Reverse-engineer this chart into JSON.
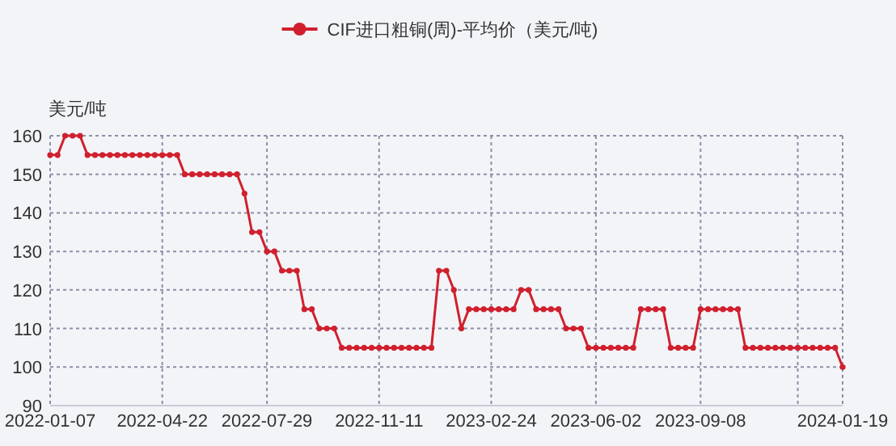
{
  "chart_data": {
    "type": "line",
    "ylabel": "美元/吨",
    "legend": "top",
    "grid": true,
    "marker": "circle",
    "line_style": "solid",
    "x": [
      "2022-01-07",
      "2022-01-14",
      "2022-01-21",
      "2022-01-28",
      "2022-02-04",
      "2022-02-11",
      "2022-02-18",
      "2022-02-25",
      "2022-03-04",
      "2022-03-11",
      "2022-03-18",
      "2022-03-25",
      "2022-04-01",
      "2022-04-08",
      "2022-04-15",
      "2022-04-22",
      "2022-04-29",
      "2022-05-06",
      "2022-05-13",
      "2022-05-20",
      "2022-05-27",
      "2022-06-03",
      "2022-06-10",
      "2022-06-17",
      "2022-06-24",
      "2022-07-01",
      "2022-07-08",
      "2022-07-15",
      "2022-07-22",
      "2022-07-29",
      "2022-08-05",
      "2022-08-12",
      "2022-08-19",
      "2022-08-26",
      "2022-09-02",
      "2022-09-09",
      "2022-09-16",
      "2022-09-23",
      "2022-09-30",
      "2022-10-07",
      "2022-10-14",
      "2022-10-21",
      "2022-10-28",
      "2022-11-04",
      "2022-11-11",
      "2022-11-18",
      "2022-11-25",
      "2022-12-02",
      "2022-12-09",
      "2022-12-16",
      "2022-12-23",
      "2022-12-30",
      "2023-01-06",
      "2023-01-13",
      "2023-01-20",
      "2023-01-27",
      "2023-02-03",
      "2023-02-10",
      "2023-02-17",
      "2023-02-24",
      "2023-03-03",
      "2023-03-10",
      "2023-03-17",
      "2023-03-24",
      "2023-03-31",
      "2023-04-07",
      "2023-04-14",
      "2023-04-21",
      "2023-04-28",
      "2023-05-05",
      "2023-05-12",
      "2023-05-19",
      "2023-05-26",
      "2023-06-02",
      "2023-06-09",
      "2023-06-16",
      "2023-06-23",
      "2023-06-30",
      "2023-07-07",
      "2023-07-14",
      "2023-07-21",
      "2023-07-28",
      "2023-08-04",
      "2023-08-11",
      "2023-08-18",
      "2023-08-25",
      "2023-09-01",
      "2023-09-08",
      "2023-09-15",
      "2023-09-22",
      "2023-09-29",
      "2023-10-06",
      "2023-10-13",
      "2023-10-20",
      "2023-10-27",
      "2023-11-03",
      "2023-11-10",
      "2023-11-17",
      "2023-11-24",
      "2023-12-01",
      "2023-12-08",
      "2023-12-15",
      "2023-12-22",
      "2023-12-29",
      "2024-01-05",
      "2024-01-12",
      "2024-01-19"
    ],
    "series": [
      {
        "name": "CIF进口粗铜(周)-平均价（美元/吨)",
        "color": "#d0202e",
        "values": [
          155,
          155,
          160,
          160,
          160,
          155,
          155,
          155,
          155,
          155,
          155,
          155,
          155,
          155,
          155,
          155,
          155,
          155,
          150,
          150,
          150,
          150,
          150,
          150,
          150,
          150,
          145,
          135,
          135,
          130,
          130,
          125,
          125,
          125,
          115,
          115,
          110,
          110,
          110,
          105,
          105,
          105,
          105,
          105,
          105,
          105,
          105,
          105,
          105,
          105,
          105,
          105,
          125,
          125,
          120,
          110,
          115,
          115,
          115,
          115,
          115,
          115,
          115,
          120,
          120,
          115,
          115,
          115,
          115,
          110,
          110,
          110,
          105,
          105,
          105,
          105,
          105,
          105,
          105,
          115,
          115,
          115,
          115,
          105,
          105,
          105,
          105,
          115,
          115,
          115,
          115,
          115,
          115,
          105,
          105,
          105,
          105,
          105,
          105,
          105,
          105,
          105,
          105,
          105,
          105,
          105,
          100
        ]
      }
    ],
    "xlim": [
      "2022-01-07",
      "2024-01-19"
    ],
    "xticks": [
      {
        "value": "2022-01-07",
        "label": "2022-01-07"
      },
      {
        "value": "2022-04-22",
        "label": "2022-04-22"
      },
      {
        "value": "2022-07-29",
        "label": "2022-07-29"
      },
      {
        "value": "2022-11-11",
        "label": "2022-11-11"
      },
      {
        "value": "2023-02-24",
        "label": "2023-02-24"
      },
      {
        "value": "2023-06-02",
        "label": "2023-06-02"
      },
      {
        "value": "2023-09-08",
        "label": "2023-09-08"
      },
      {
        "value": "2023-12-08",
        "label": null
      },
      {
        "value": "2024-01-19",
        "label": "2024-01-19"
      }
    ],
    "ylim": [
      90,
      160
    ],
    "yticks": [
      90,
      100,
      110,
      120,
      130,
      140,
      150,
      160
    ]
  }
}
